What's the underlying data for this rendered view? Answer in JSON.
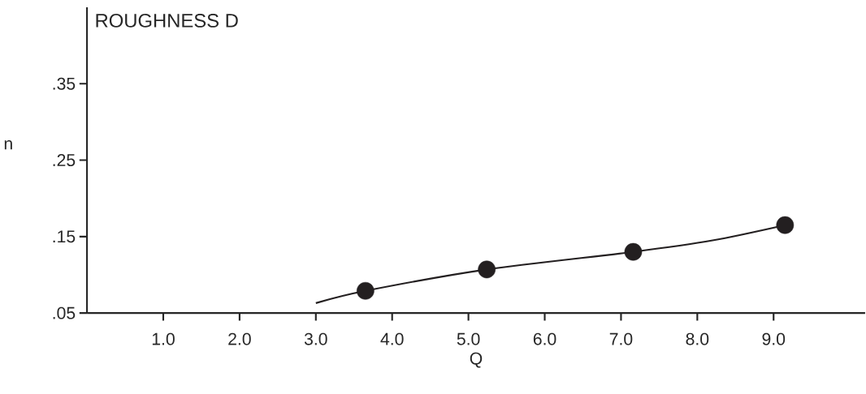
{
  "chart_data": {
    "type": "line",
    "title": "ROUGHNESS D",
    "xlabel": "Q",
    "ylabel": "n",
    "xlim": [
      0,
      10.2
    ],
    "ylim": [
      0.05,
      0.45
    ],
    "xticks": [
      {
        "value": 1,
        "label": "1.0"
      },
      {
        "value": 2,
        "label": "2.0"
      },
      {
        "value": 3,
        "label": "3.0"
      },
      {
        "value": 4,
        "label": "4.0"
      },
      {
        "value": 5,
        "label": "5.0"
      },
      {
        "value": 6,
        "label": "6.0"
      },
      {
        "value": 7,
        "label": "7.0"
      },
      {
        "value": 8,
        "label": "8.0"
      },
      {
        "value": 9,
        "label": "9.0"
      }
    ],
    "yticks": [
      {
        "value": 0.05,
        "label": ".05"
      },
      {
        "value": 0.15,
        "label": ".15"
      },
      {
        "value": 0.25,
        "label": ".25"
      },
      {
        "value": 0.35,
        "label": ".35"
      }
    ],
    "grid": false,
    "line_style": "solid",
    "series": [
      {
        "color": "#231f20",
        "x": [
          3.0,
          3.65,
          5.24,
          7.16,
          8.2,
          9.15
        ],
        "values": [
          0.063,
          0.079,
          0.107,
          0.13,
          0.145,
          0.165
        ]
      },
      {
        "type": "scatter",
        "marker": "circle",
        "color": "#231f20",
        "x": [
          3.65,
          5.24,
          7.16,
          9.15
        ],
        "values": [
          0.079,
          0.107,
          0.13,
          0.165
        ]
      }
    ]
  }
}
